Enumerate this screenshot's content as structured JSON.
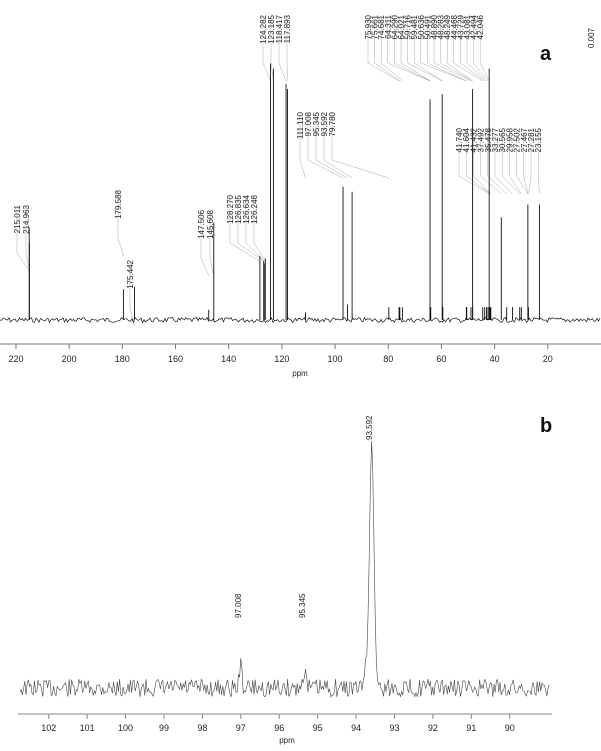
{
  "chart_data": [
    {
      "type": "line",
      "panel_label": "a",
      "xlabel": "ppm",
      "x_reversed": true,
      "xlim": [
        226,
        0
      ],
      "x_ticks": [
        220,
        200,
        180,
        160,
        140,
        120,
        100,
        80,
        60,
        40,
        20
      ],
      "tick_labels": [
        "220",
        "200",
        "180",
        "160",
        "140",
        "120",
        "100",
        "80",
        "60",
        "40",
        "20"
      ],
      "top_right_value": "0.007",
      "peaks": [
        {
          "ppm": 215.011,
          "label": "215.011",
          "height": 0.36
        },
        {
          "ppm": 214.963,
          "label": "214.963",
          "height": 0.3
        },
        {
          "ppm": 179.588,
          "label": "179.588",
          "height": 0.12
        },
        {
          "ppm": 175.442,
          "label": "175.442",
          "height": 0.13
        },
        {
          "ppm": 147.506,
          "label": "147.506",
          "height": 0.04
        },
        {
          "ppm": 145.608,
          "label": "145.608",
          "height": 0.38
        },
        {
          "ppm": 128.27,
          "label": "128.270",
          "height": 0.25
        },
        {
          "ppm": 126.835,
          "label": "126.835",
          "height": 0.23
        },
        {
          "ppm": 126.634,
          "label": "126.634",
          "height": 0.22
        },
        {
          "ppm": 126.248,
          "label": "126.248",
          "height": 0.24
        },
        {
          "ppm": 124.282,
          "label": "124.282",
          "height": 1.0
        },
        {
          "ppm": 123.185,
          "label": "123.185",
          "height": 0.98
        },
        {
          "ppm": 118.417,
          "label": "118.417",
          "height": 0.92
        },
        {
          "ppm": 117.893,
          "label": "117.893",
          "height": 0.9
        },
        {
          "ppm": 111.11,
          "label": "111.110",
          "height": 0.03
        },
        {
          "ppm": 97.008,
          "label": "97.008",
          "height": 0.52
        },
        {
          "ppm": 95.345,
          "label": "95.345",
          "height": 0.06
        },
        {
          "ppm": 93.592,
          "label": "93.592",
          "height": 0.5
        },
        {
          "ppm": 79.78,
          "label": "79.780",
          "height": 0.05
        },
        {
          "ppm": 75.93,
          "label": "75.930",
          "height": 0.05
        },
        {
          "ppm": 75.661,
          "label": "75.661",
          "height": 0.05
        },
        {
          "ppm": 74.681,
          "label": "74.681",
          "height": 0.05
        },
        {
          "ppm": 64.311,
          "label": "64.311",
          "height": 0.05
        },
        {
          "ppm": 64.29,
          "label": "64.290",
          "height": 0.86
        },
        {
          "ppm": 64.021,
          "label": "64.021",
          "height": 0.05
        },
        {
          "ppm": 59.716,
          "label": "59.716",
          "height": 0.88
        },
        {
          "ppm": 59.481,
          "label": "59.481",
          "height": 0.05
        },
        {
          "ppm": 50.636,
          "label": "50.636",
          "height": 0.05
        },
        {
          "ppm": 50.491,
          "label": "50.491",
          "height": 0.05
        },
        {
          "ppm": 48.89,
          "label": "48.890",
          "height": 0.05
        },
        {
          "ppm": 48.283,
          "label": "48.283",
          "height": 0.9
        },
        {
          "ppm": 48.249,
          "label": "48.249",
          "height": 0.05
        },
        {
          "ppm": 44.468,
          "label": "44.468",
          "height": 0.05
        },
        {
          "ppm": 43.729,
          "label": "43.729",
          "height": 0.05
        },
        {
          "ppm": 43.081,
          "label": "43.081",
          "height": 0.05
        },
        {
          "ppm": 42.494,
          "label": "42.494",
          "height": 0.05
        },
        {
          "ppm": 42.046,
          "label": "42.046",
          "height": 0.98
        },
        {
          "ppm": 41.74,
          "label": "41.740",
          "height": 0.05
        },
        {
          "ppm": 41.604,
          "label": "41.604",
          "height": 0.05
        },
        {
          "ppm": 41.432,
          "label": "41.432",
          "height": 0.05
        },
        {
          "ppm": 37.492,
          "label": "37.492",
          "height": 0.4
        },
        {
          "ppm": 35.478,
          "label": "35.478",
          "height": 0.05
        },
        {
          "ppm": 33.277,
          "label": "33.277",
          "height": 0.05
        },
        {
          "ppm": 30.565,
          "label": "30.565",
          "height": 0.05
        },
        {
          "ppm": 29.958,
          "label": "29.958",
          "height": 0.05
        },
        {
          "ppm": 27.502,
          "label": "27.502",
          "height": 0.45
        },
        {
          "ppm": 27.467,
          "label": "27.467",
          "height": 0.05
        },
        {
          "ppm": 27.281,
          "label": "27.281",
          "height": 0.05
        },
        {
          "ppm": 23.155,
          "label": "23.155",
          "height": 0.45
        }
      ]
    },
    {
      "type": "line",
      "panel_label": "b",
      "xlabel": "ppm",
      "x_reversed": true,
      "xlim": [
        102.8,
        88.9
      ],
      "x_ticks": [
        102,
        101,
        100,
        99,
        98,
        97,
        96,
        95,
        94,
        93,
        92,
        91,
        90
      ],
      "tick_labels": [
        "102",
        "101",
        "100",
        "99",
        "98",
        "97",
        "96",
        "95",
        "94",
        "93",
        "92",
        "91",
        "90"
      ],
      "peaks": [
        {
          "ppm": 97.008,
          "label": "97.008",
          "height": 0.09
        },
        {
          "ppm": 95.345,
          "label": "95.345",
          "height": 0.08
        },
        {
          "ppm": 93.592,
          "label": "93.592",
          "height": 1.0
        }
      ]
    }
  ]
}
